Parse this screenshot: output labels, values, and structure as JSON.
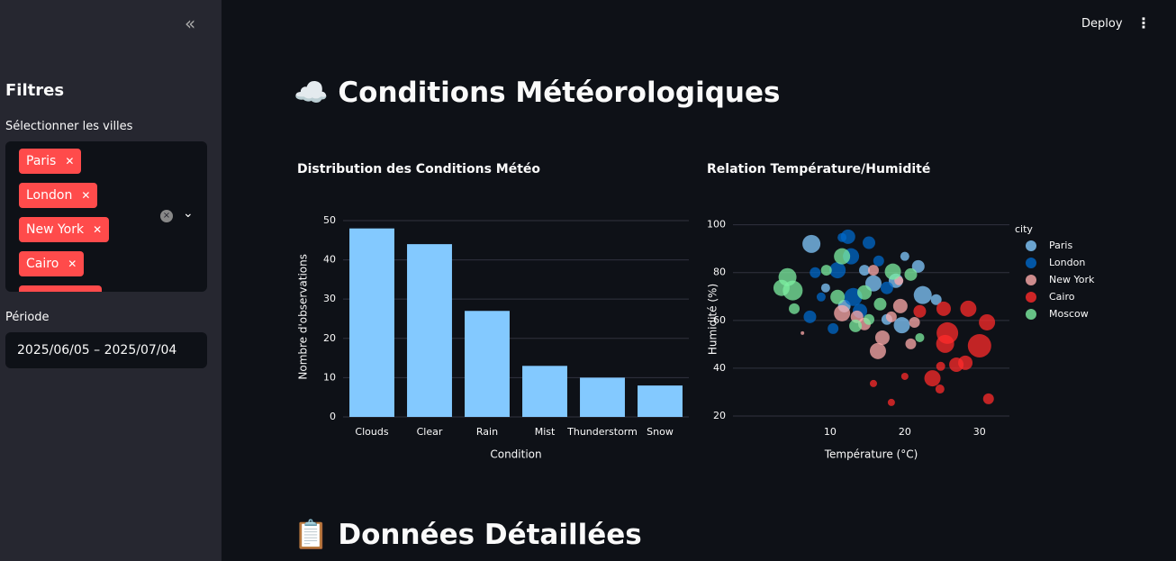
{
  "header": {
    "deploy": "Deploy"
  },
  "sidebar": {
    "title": "Filtres",
    "cities_label": "Sélectionner les villes",
    "cities": [
      "Paris",
      "London",
      "New York",
      "Cairo",
      "Moscow"
    ],
    "period_label": "Période",
    "period": "2025/06/05 – 2025/07/04"
  },
  "main": {
    "title": "☁️ Conditions Météorologiques",
    "section2": "📋 Données Détaillées"
  },
  "chart_data": [
    {
      "type": "bar",
      "title": "Distribution des Conditions Météo",
      "x_label": "Condition",
      "y_label": "Nombre d'observations",
      "categories": [
        "Clouds",
        "Clear",
        "Rain",
        "Mist",
        "Thunderstorm",
        "Snow"
      ],
      "values": [
        48,
        44,
        27,
        13,
        10,
        8
      ],
      "color": "#83c9ff",
      "ylim": [
        0,
        51
      ],
      "yticks": [
        0,
        10,
        20,
        30,
        40,
        50
      ],
      "grid": true
    },
    {
      "type": "scatter",
      "title": "Relation Température/Humidité",
      "x_label": "Température (°C)",
      "y_label": "Humidité (%)",
      "legend_title": "city",
      "xlim": [
        -3,
        34
      ],
      "xticks": [
        10,
        20,
        30
      ],
      "ylim": [
        17,
        104
      ],
      "yticks": [
        20,
        40,
        60,
        80,
        100
      ],
      "grid": true,
      "series": [
        {
          "name": "Paris",
          "color": "#83c9ff",
          "x": [
            7.5,
            22.4,
            19.6,
            18.8,
            21.8,
            14.6,
            11.9,
            15.8,
            24.2,
            9.4,
            20,
            17.6
          ],
          "values": [
            92,
            70.6,
            58,
            76.6,
            82.6,
            81,
            66,
            75.5,
            68.7,
            73.6,
            86.8,
            60.4
          ],
          "sizes": [
            10,
            10,
            9,
            8,
            7,
            6,
            7,
            9,
            6,
            5,
            5,
            6
          ]
        },
        {
          "name": "London",
          "color": "#0068c9",
          "x": [
            12.4,
            15.2,
            11,
            8,
            7.3,
            10.4,
            13.1,
            16.5,
            14,
            17.6,
            8.8,
            12.8,
            11.6
          ],
          "values": [
            95,
            92.5,
            81,
            80,
            61.5,
            56.6,
            69.8,
            84.9,
            64,
            73.6,
            69.8,
            86.8,
            94.7
          ],
          "sizes": [
            8,
            7,
            9,
            6,
            7,
            6,
            10,
            6,
            8,
            7,
            5,
            9,
            5
          ]
        },
        {
          "name": "New York",
          "color": "#ffabab",
          "x": [
            16.4,
            17,
            20.8,
            11.6,
            13.6,
            18.2,
            15.8,
            19.4,
            19.2,
            14.6,
            21.3,
            6.3
          ],
          "values": [
            47.2,
            52.8,
            50.2,
            63,
            61.5,
            61.5,
            81,
            66,
            76.6,
            58.5,
            59.2,
            54.7
          ],
          "sizes": [
            9,
            8,
            6,
            9,
            7,
            6,
            6,
            8,
            5,
            7,
            6,
            2
          ]
        },
        {
          "name": "Cairo",
          "color": "#ff2b2b",
          "x": [
            30,
            25.4,
            25.7,
            23.7,
            26.9,
            28.5,
            31,
            25.2,
            22,
            28.1,
            31.2,
            18.2,
            15.8,
            20,
            24.8,
            24.7
          ],
          "values": [
            49.4,
            50.2,
            54.7,
            35.8,
            41.5,
            64.9,
            59.2,
            64.9,
            63.8,
            42.3,
            27.2,
            25.7,
            33.6,
            36.6,
            40.8,
            31.3
          ],
          "sizes": [
            13,
            10,
            12,
            9,
            8,
            9,
            9,
            8,
            7,
            8,
            6,
            4,
            4,
            4,
            5,
            5
          ]
        },
        {
          "name": "Moscow",
          "color": "#7defa1",
          "x": [
            4.3,
            3.5,
            5,
            5.2,
            9.5,
            11.6,
            14.6,
            18.4,
            20.8,
            22,
            13.4,
            11,
            16.7,
            15.2
          ],
          "values": [
            78.1,
            73.6,
            72.5,
            64.9,
            81,
            86.8,
            71.7,
            80.4,
            79.2,
            52.8,
            57.7,
            69.8,
            66.8,
            60.4
          ],
          "sizes": [
            10,
            9,
            11,
            6,
            6,
            9,
            8,
            9,
            7,
            5,
            7,
            8,
            7,
            6
          ]
        }
      ]
    }
  ]
}
